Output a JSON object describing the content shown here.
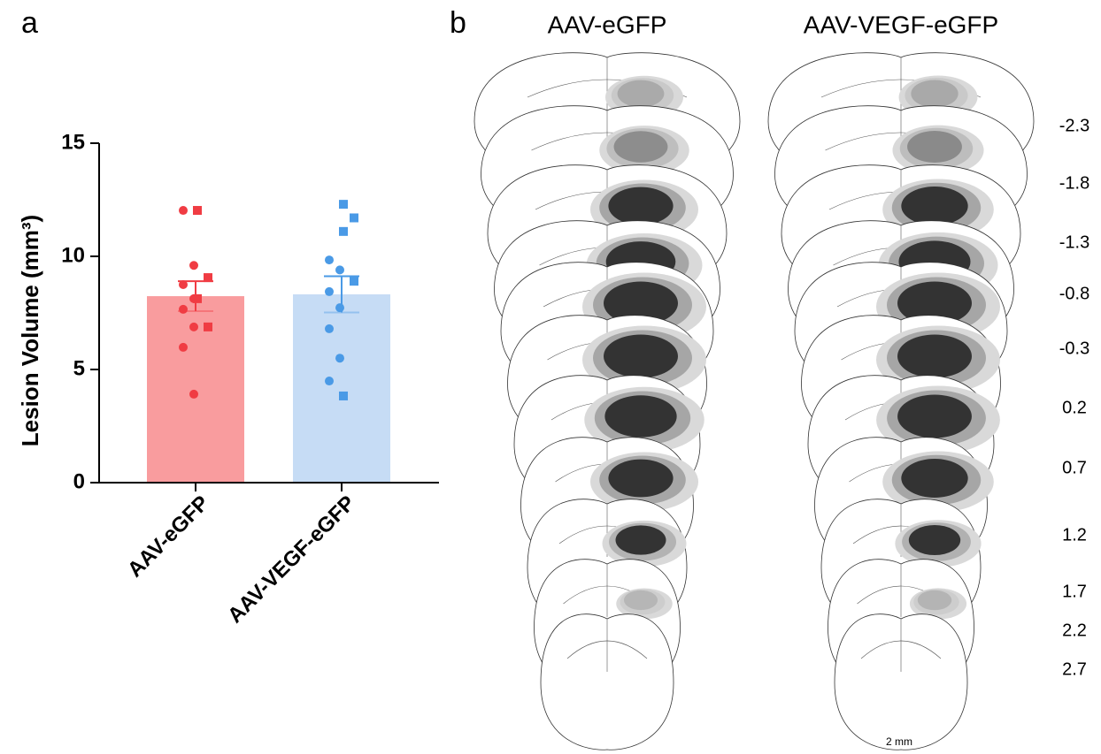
{
  "panel_labels": [
    "a",
    "b"
  ],
  "chart_data": {
    "type": "bar",
    "y_label": "Lesion Volume (mm³)",
    "categories": [
      "AAV-eGFP",
      "AAV-VEGF-eGFP"
    ],
    "values": [
      8.24,
      8.32
    ],
    "errors": [
      0.66,
      0.8
    ],
    "colors": [
      "#f99c9e",
      "#c6dcf5"
    ],
    "point_colors": [
      "#f03c43",
      "#4a9ae6"
    ],
    "points": [
      [
        {
          "shape": "circle",
          "values": [
            12.03,
            9.6,
            8.75,
            8.13,
            7.66,
            6.88,
            5.98,
            3.91
          ]
        },
        {
          "shape": "square",
          "values": [
            12.03,
            9.06,
            8.13,
            6.88
          ]
        }
      ],
      [
        {
          "shape": "circle",
          "values": [
            9.84,
            9.4,
            8.44,
            7.73,
            6.8,
            5.5,
            4.49
          ]
        },
        {
          "shape": "square",
          "values": [
            12.3,
            11.7,
            11.1,
            8.9,
            3.83
          ]
        }
      ]
    ],
    "ylim": [
      0,
      15
    ],
    "yticks": [
      0,
      5,
      10,
      15
    ]
  },
  "sections": {
    "titles": [
      "AAV-eGFP",
      "AAV-VEGF-eGFP"
    ],
    "levels": [
      "-2.3",
      "-1.8",
      "-1.3",
      "-0.8",
      "-0.3",
      "0.2",
      "0.7",
      "1.2",
      "1.7",
      "2.2",
      "2.7"
    ],
    "scale_bar": "2 mm"
  }
}
